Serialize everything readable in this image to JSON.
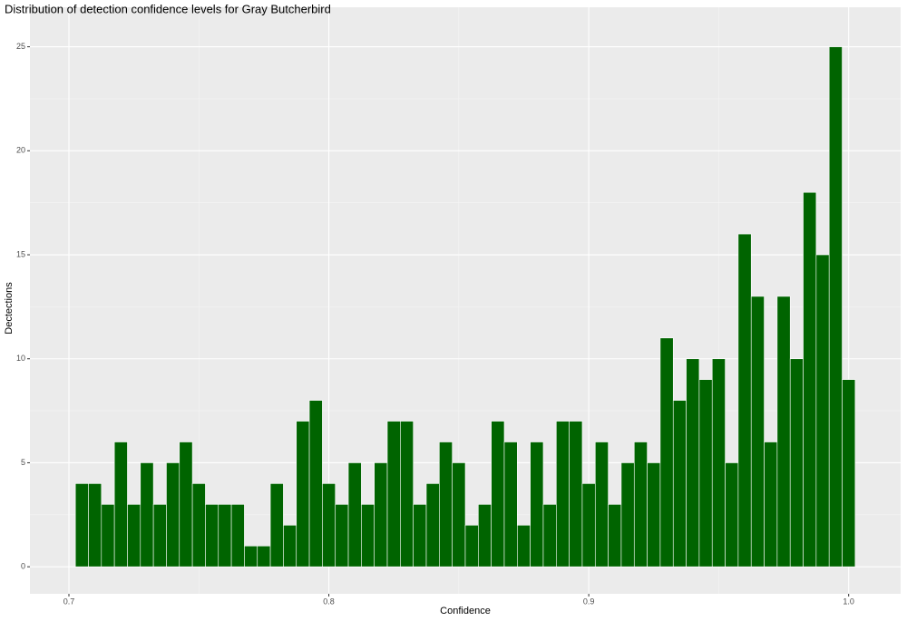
{
  "chart_data": {
    "type": "histogram",
    "title": "Distribution of detection confidence levels for Gray Butcherbird",
    "x_label": "Confidence",
    "y_label": "Dectections",
    "bins": [
      0.7025,
      0.7075,
      0.7125,
      0.7175,
      0.7225,
      0.7275,
      0.7325,
      0.7375,
      0.7425,
      0.7475,
      0.7525,
      0.7575,
      0.7625,
      0.7675,
      0.7725,
      0.7775,
      0.7825,
      0.7875,
      0.7925,
      0.7975,
      0.8025,
      0.8075,
      0.8125,
      0.8175,
      0.8225,
      0.8275,
      0.8325,
      0.8375,
      0.8425,
      0.8475,
      0.8525,
      0.8575,
      0.8625,
      0.8675,
      0.8725,
      0.8775,
      0.8825,
      0.8875,
      0.8925,
      0.8975,
      0.9025,
      0.9075,
      0.9125,
      0.9175,
      0.9225,
      0.9275,
      0.9325,
      0.9375,
      0.9425,
      0.9475,
      0.9525,
      0.9575,
      0.9625,
      0.9675,
      0.9725,
      0.9775,
      0.9825,
      0.9875,
      0.9925,
      0.9975,
      1.0025
    ],
    "counts": [
      4,
      4,
      3,
      6,
      3,
      5,
      3,
      5,
      6,
      4,
      3,
      3,
      3,
      1,
      1,
      4,
      2,
      7,
      8,
      4,
      3,
      5,
      3,
      5,
      7,
      7,
      3,
      4,
      6,
      5,
      2,
      3,
      7,
      6,
      2,
      6,
      3,
      7,
      7,
      4,
      6,
      3,
      5,
      6,
      5,
      11,
      8,
      10,
      9,
      10,
      5,
      16,
      13,
      6,
      13,
      10,
      18,
      15,
      25,
      9
    ],
    "color": "#006400",
    "xlim": [
      0.685,
      1.02
    ],
    "ylim": [
      -1.3,
      26.9
    ],
    "xticks": [
      0.7,
      0.8,
      0.9,
      {
        "value": 1,
        "label": "1.0"
      }
    ],
    "yticks": [
      0,
      5,
      10,
      15,
      20,
      25
    ],
    "grid": true
  }
}
